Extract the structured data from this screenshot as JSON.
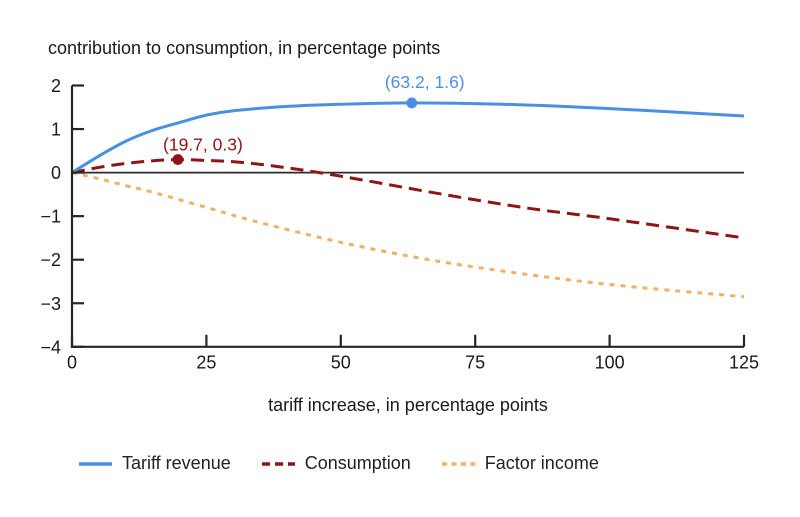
{
  "title": "contribution to consumption, in percentage points",
  "chart_data": {
    "type": "line",
    "title": "contribution to consumption, in percentage points",
    "xlabel": "tariff increase, in percentage points",
    "ylabel": "",
    "xlim": [
      0,
      125
    ],
    "ylim": [
      -4,
      2
    ],
    "x_ticks": [
      0,
      25,
      50,
      75,
      100,
      125
    ],
    "y_ticks": [
      2,
      1,
      0,
      -1,
      -2,
      -3,
      -4
    ],
    "grid": "off",
    "zero_line": true,
    "legend_position": "bottom",
    "axis_color": "#262626",
    "series": [
      {
        "name": "Tariff revenue",
        "color": "#4a90e2",
        "style": "solid",
        "points": [
          [
            0,
            0
          ],
          [
            5,
            0.38
          ],
          [
            10,
            0.72
          ],
          [
            15,
            0.97
          ],
          [
            20,
            1.15
          ],
          [
            25,
            1.32
          ],
          [
            30,
            1.42
          ],
          [
            40,
            1.52
          ],
          [
            50,
            1.57
          ],
          [
            63.2,
            1.6
          ],
          [
            80,
            1.57
          ],
          [
            100,
            1.47
          ],
          [
            125,
            1.3
          ]
        ],
        "annotation": {
          "label": "(63.2, 1.6)",
          "x": 63.2,
          "y": 1.6
        }
      },
      {
        "name": "Consumption",
        "color": "#8e1515",
        "style": "dashed",
        "points": [
          [
            0,
            0
          ],
          [
            5,
            0.12
          ],
          [
            10,
            0.21
          ],
          [
            15,
            0.27
          ],
          [
            19.7,
            0.3
          ],
          [
            25,
            0.28
          ],
          [
            30,
            0.25
          ],
          [
            35,
            0.19
          ],
          [
            40,
            0.11
          ],
          [
            46,
            0
          ],
          [
            55,
            -0.19
          ],
          [
            70,
            -0.52
          ],
          [
            85,
            -0.82
          ],
          [
            100,
            -1.06
          ],
          [
            125,
            -1.5
          ]
        ],
        "annotation": {
          "label": "(19.7, 0.3)",
          "x": 19.7,
          "y": 0.3
        }
      },
      {
        "name": "Factor income",
        "color": "#f2b063",
        "style": "dotted",
        "points": [
          [
            0,
            0
          ],
          [
            5,
            -0.14
          ],
          [
            10,
            -0.3
          ],
          [
            15,
            -0.45
          ],
          [
            25,
            -0.8
          ],
          [
            35,
            -1.15
          ],
          [
            50,
            -1.6
          ],
          [
            65,
            -1.97
          ],
          [
            80,
            -2.26
          ],
          [
            100,
            -2.57
          ],
          [
            125,
            -2.85
          ]
        ],
        "annotation": null
      }
    ]
  }
}
